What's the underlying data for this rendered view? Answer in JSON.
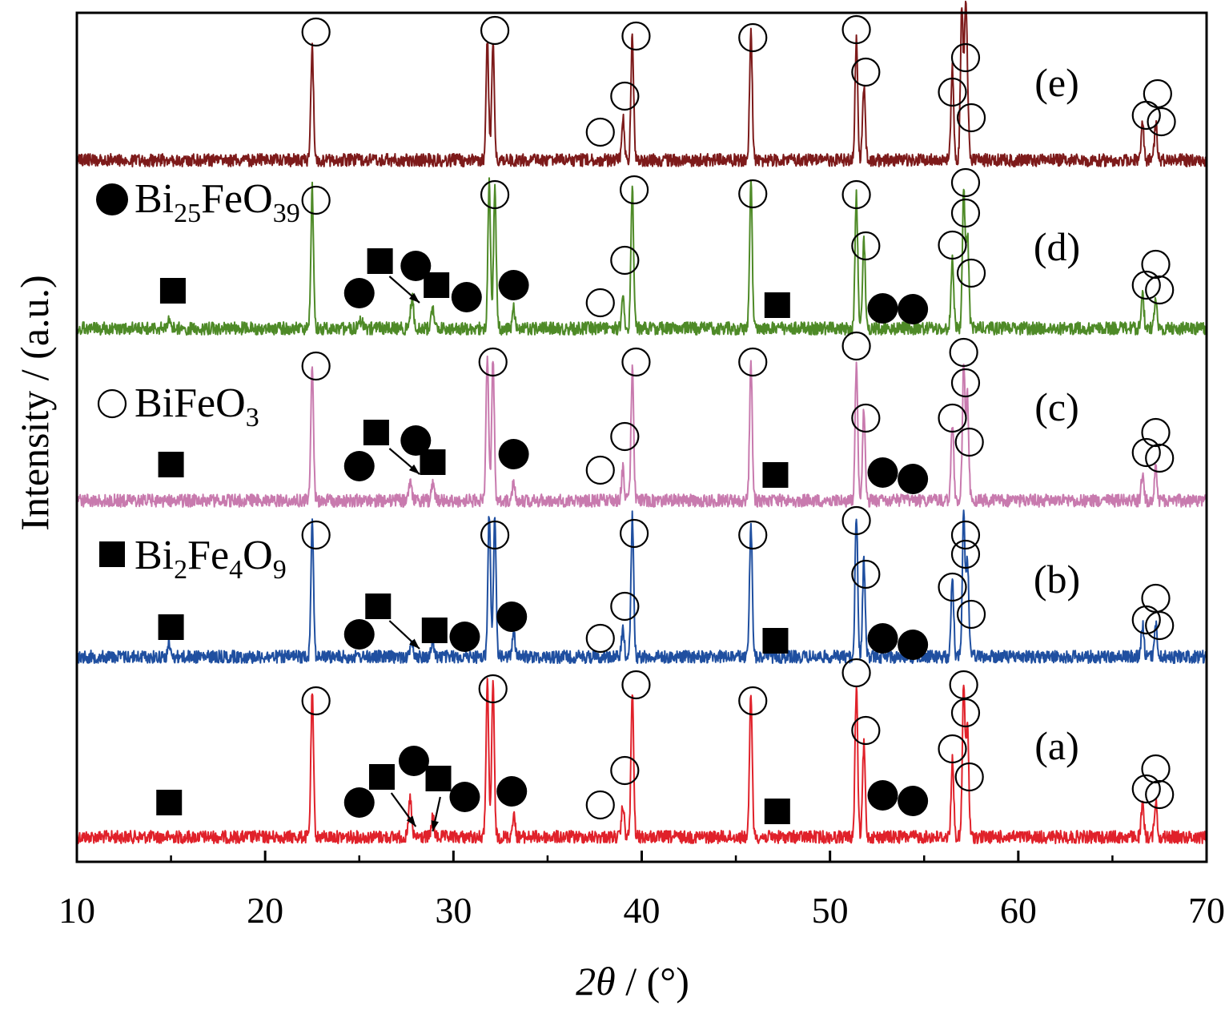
{
  "chart_data": {
    "type": "line",
    "xlabel": {
      "italic_var": "2θ",
      "unit": " / (°)"
    },
    "ylabel": "Intensity / (a.u.)",
    "xlim": [
      10,
      70
    ],
    "x_ticks": [
      "10",
      "20",
      "30",
      "40",
      "50",
      "60",
      "70"
    ],
    "grid": false,
    "legend": [
      {
        "symbol": "filled-circle",
        "formula_parts": [
          [
            "Bi",
            "normal"
          ],
          [
            "25",
            "sub"
          ],
          [
            "FeO",
            "normal"
          ],
          [
            "39",
            "sub"
          ]
        ]
      },
      {
        "symbol": "open-circle",
        "formula_parts": [
          [
            "BiFeO",
            "normal"
          ],
          [
            "3",
            "sub"
          ]
        ]
      },
      {
        "symbol": "filled-square",
        "formula_parts": [
          [
            "Bi",
            "normal"
          ],
          [
            "2",
            "sub"
          ],
          [
            "Fe",
            "normal"
          ],
          [
            "4",
            "sub"
          ],
          [
            "O",
            "normal"
          ],
          [
            "9",
            "sub"
          ]
        ]
      }
    ],
    "series": [
      {
        "label": "(a)",
        "color": "#e0212a",
        "baseline": 1045,
        "peaks": [
          [
            22.5,
            180
          ],
          [
            27.7,
            50
          ],
          [
            28.9,
            25
          ],
          [
            31.8,
            190
          ],
          [
            32.1,
            190
          ],
          [
            33.2,
            28
          ],
          [
            39.0,
            40
          ],
          [
            39.5,
            180
          ],
          [
            45.8,
            180
          ],
          [
            51.4,
            185
          ],
          [
            51.8,
            115
          ],
          [
            56.5,
            95
          ],
          [
            57.1,
            190
          ],
          [
            57.3,
            140
          ],
          [
            66.6,
            40
          ],
          [
            67.3,
            45
          ]
        ],
        "symbols": {
          "open": [
            [
              22.7,
              875
            ],
            [
              32.1,
              860
            ],
            [
              39.1,
              962
            ],
            [
              39.7,
              855
            ],
            [
              37.8,
              1005
            ],
            [
              45.9,
              875
            ],
            [
              51.4,
              840
            ],
            [
              51.9,
              912
            ],
            [
              56.5,
              935
            ],
            [
              57.1,
              855
            ],
            [
              57.2,
              890
            ],
            [
              57.4,
              970
            ],
            [
              66.8,
              985
            ],
            [
              67.3,
              960
            ],
            [
              67.5,
              992
            ]
          ],
          "filled_circle": [
            [
              25.0,
              1002
            ],
            [
              27.9,
              950
            ],
            [
              30.6,
              995
            ],
            [
              33.1,
              988
            ],
            [
              52.8,
              993
            ],
            [
              54.4,
              1000
            ]
          ],
          "filled_square": [
            [
              14.9,
              1002
            ],
            [
              26.2,
              970
            ],
            [
              29.2,
              972
            ],
            [
              47.2,
              1013
            ]
          ],
          "arrows": [
            [
              26.7,
              990,
              28.0,
              1032
            ],
            [
              29.3,
              995,
              28.9,
              1038
            ]
          ]
        }
      },
      {
        "label": "(b)",
        "color": "#1f4fa0",
        "baseline": 820,
        "peaks": [
          [
            14.9,
            15
          ],
          [
            22.5,
            170
          ],
          [
            27.8,
            20
          ],
          [
            28.9,
            20
          ],
          [
            31.9,
            180
          ],
          [
            32.2,
            175
          ],
          [
            33.2,
            35
          ],
          [
            39.0,
            35
          ],
          [
            39.5,
            175
          ],
          [
            45.8,
            165
          ],
          [
            51.4,
            175
          ],
          [
            51.8,
            120
          ],
          [
            56.5,
            95
          ],
          [
            57.1,
            180
          ],
          [
            57.3,
            120
          ],
          [
            66.6,
            40
          ],
          [
            67.3,
            40
          ]
        ],
        "symbols": {
          "open": [
            [
              22.7,
              668
            ],
            [
              32.2,
              668
            ],
            [
              39.1,
              757
            ],
            [
              39.6,
              666
            ],
            [
              37.8,
              797
            ],
            [
              45.9,
              668
            ],
            [
              51.4,
              650
            ],
            [
              51.9,
              717
            ],
            [
              56.5,
              733
            ],
            [
              57.2,
              668
            ],
            [
              57.2,
              692
            ],
            [
              57.5,
              767
            ],
            [
              66.8,
              774
            ],
            [
              67.3,
              747
            ],
            [
              67.5,
              781
            ]
          ],
          "filled_circle": [
            [
              25.0,
              792
            ],
            [
              30.6,
              795
            ],
            [
              33.1,
              770
            ],
            [
              52.8,
              797
            ],
            [
              54.4,
              805
            ]
          ],
          "filled_square": [
            [
              15.0,
              783
            ],
            [
              26.0,
              757
            ],
            [
              29.0,
              787
            ],
            [
              47.1,
              800
            ]
          ],
          "arrows": [
            [
              26.6,
              775,
              28.2,
              810
            ]
          ]
        }
      },
      {
        "label": "(c)",
        "color": "#c87aae",
        "baseline": 625,
        "peaks": [
          [
            22.5,
            165
          ],
          [
            27.7,
            25
          ],
          [
            28.9,
            20
          ],
          [
            31.8,
            175
          ],
          [
            32.1,
            175
          ],
          [
            33.2,
            25
          ],
          [
            39.0,
            40
          ],
          [
            39.5,
            165
          ],
          [
            45.8,
            170
          ],
          [
            51.4,
            165
          ],
          [
            51.8,
            115
          ],
          [
            56.5,
            95
          ],
          [
            57.1,
            170
          ],
          [
            57.3,
            130
          ],
          [
            66.6,
            35
          ],
          [
            67.3,
            40
          ]
        ],
        "symbols": {
          "open": [
            [
              22.7,
              457
            ],
            [
              32.1,
              452
            ],
            [
              39.1,
              545
            ],
            [
              39.7,
              452
            ],
            [
              37.8,
              587
            ],
            [
              45.9,
              452
            ],
            [
              51.4,
              432
            ],
            [
              51.9,
              522
            ],
            [
              56.5,
              522
            ],
            [
              57.1,
              440
            ],
            [
              57.2,
              478
            ],
            [
              57.4,
              552
            ],
            [
              66.8,
              565
            ],
            [
              67.3,
              540
            ],
            [
              67.5,
              572
            ]
          ],
          "filled_circle": [
            [
              25.0,
              582
            ],
            [
              28.0,
              550
            ],
            [
              33.2,
              567
            ],
            [
              52.8,
              590
            ],
            [
              54.4,
              598
            ]
          ],
          "filled_square": [
            [
              15.0,
              580
            ],
            [
              25.9,
              540
            ],
            [
              28.9,
              577
            ],
            [
              47.1,
              593
            ]
          ],
          "arrows": [
            [
              26.6,
              560,
              28.2,
              592
            ]
          ]
        }
      },
      {
        "label": "(d)",
        "color": "#4e8a27",
        "baseline": 410,
        "peaks": [
          [
            14.9,
            12
          ],
          [
            22.5,
            175
          ],
          [
            25.1,
            10
          ],
          [
            27.8,
            40
          ],
          [
            28.9,
            25
          ],
          [
            31.9,
            180
          ],
          [
            32.2,
            175
          ],
          [
            33.2,
            25
          ],
          [
            39.0,
            40
          ],
          [
            39.5,
            175
          ],
          [
            45.8,
            180
          ],
          [
            51.4,
            165
          ],
          [
            51.8,
            110
          ],
          [
            56.5,
            85
          ],
          [
            57.1,
            175
          ],
          [
            57.3,
            120
          ],
          [
            66.6,
            40
          ],
          [
            67.3,
            40
          ]
        ],
        "symbols": {
          "open": [
            [
              22.7,
              250
            ],
            [
              32.2,
              243
            ],
            [
              39.1,
              325
            ],
            [
              39.6,
              237
            ],
            [
              37.8,
              378
            ],
            [
              45.9,
              242
            ],
            [
              51.4,
              243
            ],
            [
              51.9,
              307
            ],
            [
              56.5,
              306
            ],
            [
              57.2,
              228
            ],
            [
              57.2,
              266
            ],
            [
              57.5,
              341
            ],
            [
              66.8,
              356
            ],
            [
              67.3,
              330
            ],
            [
              67.5,
              362
            ]
          ],
          "filled_circle": [
            [
              25.0,
              366
            ],
            [
              28.0,
              332
            ],
            [
              30.7,
              371
            ],
            [
              33.2,
              356
            ],
            [
              52.8,
              385
            ],
            [
              54.4,
              386
            ]
          ],
          "filled_square": [
            [
              15.1,
              363
            ],
            [
              26.1,
              326
            ],
            [
              29.1,
              356
            ],
            [
              47.2,
              381
            ]
          ],
          "arrows": [
            [
              26.6,
              345,
              28.2,
              378
            ]
          ]
        }
      },
      {
        "label": "(e)",
        "color": "#7d1a1a",
        "baseline": 200,
        "peaks": [
          [
            22.5,
            140
          ],
          [
            31.8,
            150
          ],
          [
            32.1,
            145
          ],
          [
            39.0,
            55
          ],
          [
            39.5,
            155
          ],
          [
            45.8,
            160
          ],
          [
            51.4,
            150
          ],
          [
            51.8,
            90
          ],
          [
            56.5,
            115
          ],
          [
            57.0,
            190
          ],
          [
            57.2,
            170
          ],
          [
            57.3,
            60
          ],
          [
            66.6,
            45
          ],
          [
            67.3,
            45
          ]
        ],
        "symbols": {
          "open": [
            [
              22.7,
              40
            ],
            [
              32.2,
              38
            ],
            [
              39.1,
              120
            ],
            [
              39.7,
              45
            ],
            [
              37.8,
              165
            ],
            [
              45.9,
              47
            ],
            [
              51.4,
              37
            ],
            [
              51.9,
              90
            ],
            [
              56.5,
              115
            ],
            [
              57.2,
              72
            ],
            [
              57.5,
              147
            ],
            [
              66.8,
              144
            ],
            [
              67.4,
              117
            ],
            [
              67.6,
              152
            ]
          ],
          "filled_circle": [],
          "filled_square": [],
          "arrows": []
        }
      }
    ],
    "trace_label_positions": {
      "(a)": 948,
      "(b)": 740,
      "(c)": 525,
      "(d)": 325,
      "(e)": 120
    }
  }
}
